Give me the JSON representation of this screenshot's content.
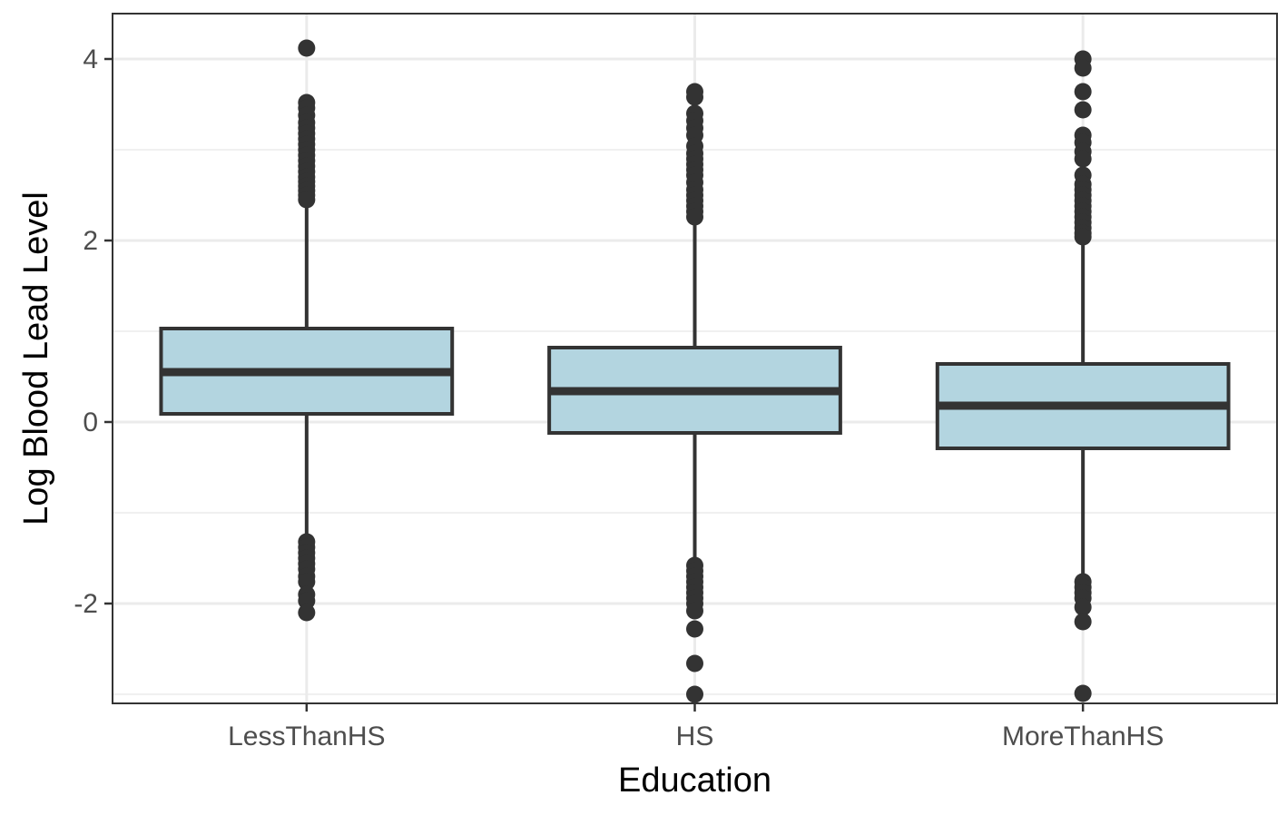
{
  "chart_data": {
    "type": "boxplot",
    "xlabel": "Education",
    "ylabel": "Log Blood Lead Level",
    "categories": [
      "LessThanHS",
      "HS",
      "MoreThanHS"
    ],
    "ylim": [
      -3.1,
      4.5
    ],
    "y_ticks": [
      {
        "value": -2,
        "label": "-2"
      },
      {
        "value": 0,
        "label": "0"
      },
      {
        "value": 2,
        "label": "2"
      },
      {
        "value": 4,
        "label": "4"
      }
    ],
    "grid": true,
    "boxes": [
      {
        "category": "LessThanHS",
        "q1": 0.09,
        "median": 0.55,
        "q3": 1.03,
        "whisker_low": -1.27,
        "whisker_high": 2.42,
        "outliers": [
          4.12,
          3.52,
          3.46,
          3.38,
          3.3,
          3.24,
          3.18,
          3.12,
          3.06,
          3.0,
          2.94,
          2.88,
          2.82,
          2.76,
          2.7,
          2.65,
          2.6,
          2.55,
          2.5,
          2.45,
          -1.32,
          -1.38,
          -1.44,
          -1.5,
          -1.56,
          -1.62,
          -1.7,
          -1.76,
          -1.9,
          -1.97,
          -2.1
        ]
      },
      {
        "category": "HS",
        "q1": -0.12,
        "median": 0.34,
        "q3": 0.82,
        "whisker_low": -1.52,
        "whisker_high": 2.22,
        "outliers": [
          3.64,
          3.58,
          3.4,
          3.32,
          3.24,
          3.16,
          3.04,
          2.96,
          2.9,
          2.84,
          2.78,
          2.72,
          2.64,
          2.56,
          2.5,
          2.44,
          2.38,
          2.32,
          2.26,
          -1.58,
          -1.64,
          -1.7,
          -1.76,
          -1.82,
          -1.88,
          -1.94,
          -2.0,
          -2.08,
          -2.28,
          -2.66,
          -3.0
        ]
      },
      {
        "category": "MoreThanHS",
        "q1": -0.29,
        "median": 0.18,
        "q3": 0.64,
        "whisker_low": -1.72,
        "whisker_high": 2.02,
        "outliers": [
          4.0,
          3.9,
          3.64,
          3.44,
          3.16,
          3.08,
          2.98,
          2.9,
          2.72,
          2.62,
          2.56,
          2.5,
          2.44,
          2.38,
          2.32,
          2.26,
          2.2,
          2.14,
          2.08,
          2.04,
          -1.76,
          -1.82,
          -1.88,
          -1.94,
          -2.04,
          -2.2,
          -2.99
        ]
      }
    ],
    "colors": {
      "box_fill": "#b3d5e0",
      "line": "#333333",
      "outlier": "#333333",
      "grid": "#ebebeb",
      "panel_border": "#333333",
      "tick_text": "#4d4d4d"
    }
  }
}
